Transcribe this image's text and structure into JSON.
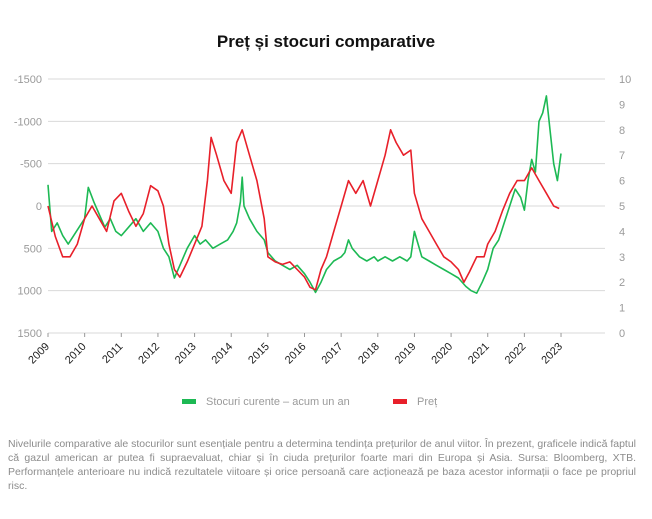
{
  "chart_data": {
    "type": "line",
    "title": "Preț și stocuri comparative",
    "x_ticks": [
      "2009",
      "2010",
      "2011",
      "2012",
      "2013",
      "2014",
      "2015",
      "2016",
      "2017",
      "2018",
      "2019",
      "2020",
      "2021",
      "2022",
      "2023"
    ],
    "y_left": {
      "ticks": [
        "-1500",
        "-1000",
        "-500",
        "0",
        "500",
        "1000",
        "1500"
      ],
      "range": [
        -1500,
        1500
      ],
      "inverted": true
    },
    "y_right": {
      "ticks": [
        "10",
        "9",
        "8",
        "7",
        "6",
        "5",
        "4",
        "3",
        "2",
        "1",
        "0"
      ],
      "range": [
        0,
        10
      ]
    },
    "series": [
      {
        "name": "Stocuri curente – acum un an",
        "axis": "left",
        "color": "#1db954",
        "points": [
          [
            2009.0,
            -250
          ],
          [
            2009.1,
            300
          ],
          [
            2009.25,
            200
          ],
          [
            2009.4,
            350
          ],
          [
            2009.55,
            450
          ],
          [
            2009.7,
            350
          ],
          [
            2009.85,
            250
          ],
          [
            2010.0,
            150
          ],
          [
            2010.1,
            -220
          ],
          [
            2010.25,
            -50
          ],
          [
            2010.4,
            100
          ],
          [
            2010.55,
            250
          ],
          [
            2010.7,
            150
          ],
          [
            2010.85,
            300
          ],
          [
            2011.0,
            350
          ],
          [
            2011.2,
            250
          ],
          [
            2011.4,
            150
          ],
          [
            2011.6,
            300
          ],
          [
            2011.8,
            200
          ],
          [
            2012.0,
            300
          ],
          [
            2012.15,
            500
          ],
          [
            2012.3,
            600
          ],
          [
            2012.45,
            850
          ],
          [
            2012.6,
            700
          ],
          [
            2012.8,
            500
          ],
          [
            2013.0,
            350
          ],
          [
            2013.15,
            450
          ],
          [
            2013.3,
            400
          ],
          [
            2013.5,
            500
          ],
          [
            2013.7,
            450
          ],
          [
            2013.9,
            400
          ],
          [
            2014.05,
            300
          ],
          [
            2014.15,
            200
          ],
          [
            2014.25,
            -50
          ],
          [
            2014.3,
            -340
          ],
          [
            2014.35,
            0
          ],
          [
            2014.5,
            150
          ],
          [
            2014.7,
            300
          ],
          [
            2014.9,
            400
          ],
          [
            2015.0,
            550
          ],
          [
            2015.2,
            650
          ],
          [
            2015.4,
            700
          ],
          [
            2015.6,
            750
          ],
          [
            2015.8,
            700
          ],
          [
            2016.0,
            800
          ],
          [
            2016.15,
            900
          ],
          [
            2016.3,
            1020
          ],
          [
            2016.45,
            900
          ],
          [
            2016.6,
            750
          ],
          [
            2016.8,
            650
          ],
          [
            2017.0,
            600
          ],
          [
            2017.1,
            550
          ],
          [
            2017.2,
            400
          ],
          [
            2017.3,
            500
          ],
          [
            2017.5,
            600
          ],
          [
            2017.7,
            650
          ],
          [
            2017.9,
            600
          ],
          [
            2018.0,
            650
          ],
          [
            2018.2,
            600
          ],
          [
            2018.4,
            650
          ],
          [
            2018.6,
            600
          ],
          [
            2018.8,
            650
          ],
          [
            2018.9,
            600
          ],
          [
            2019.0,
            300
          ],
          [
            2019.1,
            450
          ],
          [
            2019.2,
            600
          ],
          [
            2019.4,
            650
          ],
          [
            2019.6,
            700
          ],
          [
            2019.8,
            750
          ],
          [
            2020.0,
            800
          ],
          [
            2020.2,
            850
          ],
          [
            2020.4,
            950
          ],
          [
            2020.55,
            1000
          ],
          [
            2020.7,
            1030
          ],
          [
            2020.85,
            900
          ],
          [
            2021.0,
            750
          ],
          [
            2021.15,
            500
          ],
          [
            2021.3,
            400
          ],
          [
            2021.45,
            200
          ],
          [
            2021.6,
            0
          ],
          [
            2021.75,
            -200
          ],
          [
            2021.9,
            -100
          ],
          [
            2022.0,
            50
          ],
          [
            2022.1,
            -300
          ],
          [
            2022.2,
            -550
          ],
          [
            2022.3,
            -400
          ],
          [
            2022.4,
            -1000
          ],
          [
            2022.5,
            -1100
          ],
          [
            2022.6,
            -1300
          ],
          [
            2022.7,
            -900
          ],
          [
            2022.8,
            -500
          ],
          [
            2022.9,
            -300
          ],
          [
            2023.0,
            -620
          ]
        ]
      },
      {
        "name": "Preț",
        "axis": "right",
        "color": "#e8202a",
        "points": [
          [
            2009.0,
            5.0
          ],
          [
            2009.2,
            3.8
          ],
          [
            2009.4,
            3.0
          ],
          [
            2009.6,
            3.0
          ],
          [
            2009.8,
            3.5
          ],
          [
            2010.0,
            4.5
          ],
          [
            2010.2,
            5.0
          ],
          [
            2010.4,
            4.5
          ],
          [
            2010.6,
            4.0
          ],
          [
            2010.8,
            5.2
          ],
          [
            2011.0,
            5.5
          ],
          [
            2011.2,
            4.8
          ],
          [
            2011.4,
            4.2
          ],
          [
            2011.6,
            4.7
          ],
          [
            2011.8,
            5.8
          ],
          [
            2012.0,
            5.6
          ],
          [
            2012.15,
            5.0
          ],
          [
            2012.3,
            3.5
          ],
          [
            2012.45,
            2.5
          ],
          [
            2012.6,
            2.2
          ],
          [
            2012.8,
            2.8
          ],
          [
            2013.0,
            3.5
          ],
          [
            2013.2,
            4.2
          ],
          [
            2013.35,
            6.0
          ],
          [
            2013.45,
            7.7
          ],
          [
            2013.6,
            7.0
          ],
          [
            2013.8,
            6.0
          ],
          [
            2014.0,
            5.5
          ],
          [
            2014.15,
            7.5
          ],
          [
            2014.3,
            8.0
          ],
          [
            2014.5,
            7.0
          ],
          [
            2014.7,
            6.0
          ],
          [
            2014.9,
            4.5
          ],
          [
            2015.0,
            3.0
          ],
          [
            2015.2,
            2.8
          ],
          [
            2015.4,
            2.7
          ],
          [
            2015.6,
            2.8
          ],
          [
            2015.8,
            2.5
          ],
          [
            2016.0,
            2.2
          ],
          [
            2016.15,
            1.8
          ],
          [
            2016.3,
            1.7
          ],
          [
            2016.45,
            2.5
          ],
          [
            2016.6,
            3.0
          ],
          [
            2016.8,
            4.0
          ],
          [
            2017.0,
            5.0
          ],
          [
            2017.2,
            6.0
          ],
          [
            2017.4,
            5.5
          ],
          [
            2017.6,
            6.0
          ],
          [
            2017.8,
            5.0
          ],
          [
            2018.0,
            6.0
          ],
          [
            2018.2,
            7.0
          ],
          [
            2018.35,
            8.0
          ],
          [
            2018.5,
            7.5
          ],
          [
            2018.7,
            7.0
          ],
          [
            2018.9,
            7.2
          ],
          [
            2019.0,
            5.5
          ],
          [
            2019.2,
            4.5
          ],
          [
            2019.4,
            4.0
          ],
          [
            2019.6,
            3.5
          ],
          [
            2019.8,
            3.0
          ],
          [
            2020.0,
            2.8
          ],
          [
            2020.2,
            2.5
          ],
          [
            2020.35,
            2.0
          ],
          [
            2020.5,
            2.4
          ],
          [
            2020.7,
            3.0
          ],
          [
            2020.9,
            3.0
          ],
          [
            2021.0,
            3.5
          ],
          [
            2021.2,
            4.0
          ],
          [
            2021.4,
            4.8
          ],
          [
            2021.6,
            5.5
          ],
          [
            2021.8,
            6.0
          ],
          [
            2022.0,
            6.0
          ],
          [
            2022.2,
            6.5
          ],
          [
            2022.4,
            6.0
          ],
          [
            2022.6,
            5.5
          ],
          [
            2022.8,
            5.0
          ],
          [
            2022.95,
            4.9
          ]
        ]
      }
    ],
    "legend_position": "bottom",
    "grid": true
  },
  "note": "Nivelurile comparative ale stocurilor sunt esențiale pentru a determina tendința prețurilor de anul viitor. În prezent, graficele indică faptul că gazul american ar putea fi supraevaluat, chiar și în ciuda prețurilor foarte mari din Europa și Asia. Sursa: Bloomberg, XTB. Performanțele anterioare nu indică rezultatele viitoare și orice persoană care acționează pe baza acestor informații o face pe propriul risc."
}
